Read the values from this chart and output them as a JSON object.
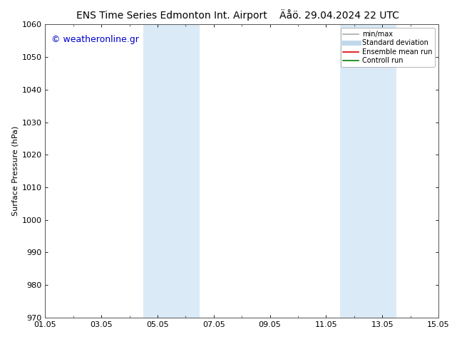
{
  "title_left": "ENS Time Series Edmonton Int. Airport",
  "title_right": "Äåö. 29.04.2024 22 UTC",
  "ylabel": "Surface Pressure (hPa)",
  "ylim": [
    970,
    1060
  ],
  "yticks": [
    970,
    980,
    990,
    1000,
    1010,
    1020,
    1030,
    1040,
    1050,
    1060
  ],
  "xtick_labels": [
    "01.05",
    "03.05",
    "05.05",
    "07.05",
    "09.05",
    "11.05",
    "13.05",
    "15.05"
  ],
  "xtick_positions": [
    0,
    2,
    4,
    6,
    8,
    10,
    12,
    14
  ],
  "xlim": [
    0,
    14
  ],
  "shade_bands": [
    {
      "xstart": 3.5,
      "xend": 5.5
    },
    {
      "xstart": 10.5,
      "xend": 12.5
    }
  ],
  "shade_color": "#daeaf7",
  "background_color": "#ffffff",
  "watermark_text": "© weatheronline.gr",
  "watermark_color": "#0000cc",
  "legend_entries": [
    {
      "label": "min/max",
      "color": "#aaaaaa",
      "lw": 1.2,
      "style": "solid"
    },
    {
      "label": "Standard deviation",
      "color": "#c0d8ea",
      "lw": 5,
      "style": "solid"
    },
    {
      "label": "Ensemble mean run",
      "color": "#dd0000",
      "lw": 1.2,
      "style": "solid"
    },
    {
      "label": "Controll run",
      "color": "#008000",
      "lw": 1.2,
      "style": "solid"
    }
  ],
  "title_fontsize": 10,
  "tick_fontsize": 8,
  "ylabel_fontsize": 8,
  "watermark_fontsize": 9,
  "legend_fontsize": 7,
  "grid_color": "#cccccc",
  "spine_color": "#555555"
}
